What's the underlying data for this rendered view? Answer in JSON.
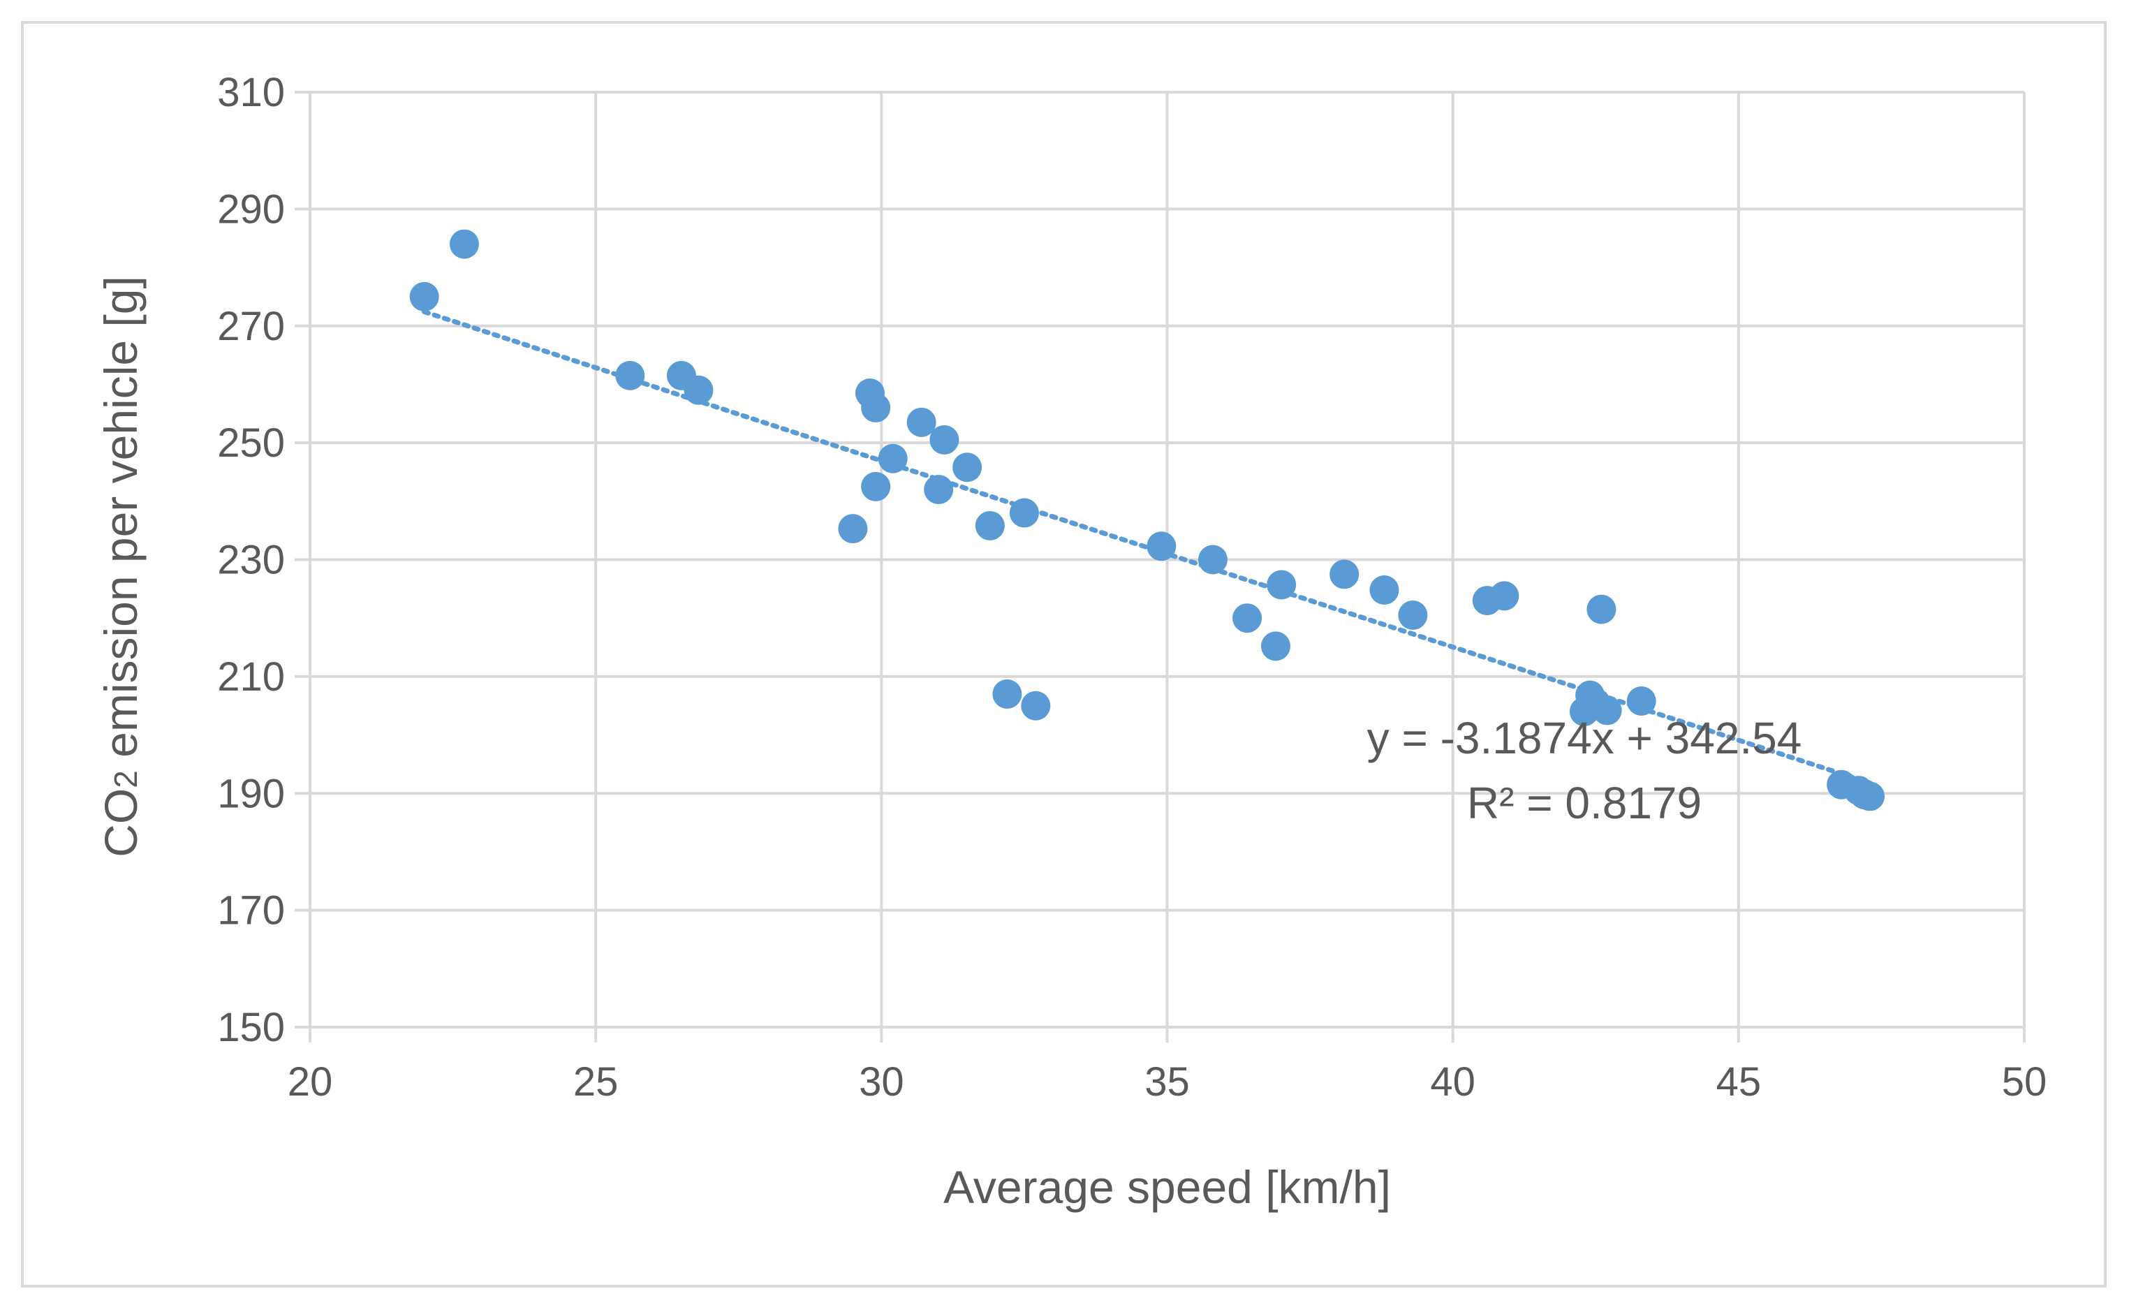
{
  "chart_data": {
    "type": "scatter",
    "title": "",
    "xlabel": "Average speed [km/h]",
    "ylabel": {
      "prefix": "CO",
      "subscript": "2",
      "suffix": " emission per vehicle  [g]"
    },
    "xlim": [
      20,
      50
    ],
    "ylim": [
      150,
      310
    ],
    "xticks": [
      20,
      25,
      30,
      35,
      40,
      45,
      50
    ],
    "yticks": [
      150,
      170,
      190,
      210,
      230,
      250,
      270,
      290,
      310
    ],
    "grid": true,
    "series": [
      {
        "name": "CO2 emission",
        "color": "#5b9bd5",
        "points": [
          {
            "x": 22.0,
            "y": 275.0
          },
          {
            "x": 22.7,
            "y": 284.0
          },
          {
            "x": 25.6,
            "y": 261.5
          },
          {
            "x": 26.5,
            "y": 261.5
          },
          {
            "x": 26.8,
            "y": 259.0
          },
          {
            "x": 29.5,
            "y": 235.3
          },
          {
            "x": 29.8,
            "y": 258.5
          },
          {
            "x": 29.9,
            "y": 256.0
          },
          {
            "x": 29.9,
            "y": 242.5
          },
          {
            "x": 30.2,
            "y": 247.3
          },
          {
            "x": 30.7,
            "y": 253.5
          },
          {
            "x": 31.0,
            "y": 242.0
          },
          {
            "x": 31.1,
            "y": 250.5
          },
          {
            "x": 31.5,
            "y": 245.8
          },
          {
            "x": 31.9,
            "y": 235.8
          },
          {
            "x": 32.2,
            "y": 207.0
          },
          {
            "x": 32.5,
            "y": 238.0
          },
          {
            "x": 32.7,
            "y": 205.0
          },
          {
            "x": 34.9,
            "y": 232.3
          },
          {
            "x": 35.8,
            "y": 230.0
          },
          {
            "x": 36.4,
            "y": 220.0
          },
          {
            "x": 36.9,
            "y": 215.2
          },
          {
            "x": 37.0,
            "y": 225.7
          },
          {
            "x": 38.1,
            "y": 227.5
          },
          {
            "x": 38.8,
            "y": 224.8
          },
          {
            "x": 39.3,
            "y": 220.5
          },
          {
            "x": 40.6,
            "y": 223.0
          },
          {
            "x": 40.9,
            "y": 223.8
          },
          {
            "x": 42.3,
            "y": 204.0
          },
          {
            "x": 42.4,
            "y": 206.8
          },
          {
            "x": 42.5,
            "y": 205.5
          },
          {
            "x": 42.6,
            "y": 221.5
          },
          {
            "x": 42.7,
            "y": 204.2
          },
          {
            "x": 43.3,
            "y": 205.8
          },
          {
            "x": 46.8,
            "y": 191.5
          },
          {
            "x": 47.1,
            "y": 190.5
          },
          {
            "x": 47.2,
            "y": 189.8
          },
          {
            "x": 47.3,
            "y": 189.5
          }
        ]
      }
    ],
    "trendline": {
      "slope": -3.1874,
      "intercept": 342.54,
      "x_range": [
        22.0,
        47.3
      ],
      "style": "dotted",
      "color": "#5b9bd5",
      "equation": "y = -3.1874x + 342.54",
      "r_squared": "R² = 0.8179"
    },
    "colors": {
      "grid": "#d9d9d9",
      "text": "#595959",
      "frame": "#d9d9d9"
    }
  }
}
